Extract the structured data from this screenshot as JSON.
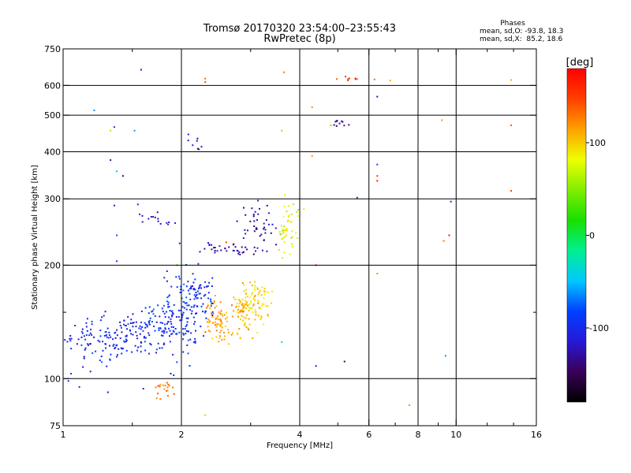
{
  "chart_data": {
    "type": "scatter",
    "title": "Tromsø 20170320 23:54:00–23:55:43",
    "subtitle": "RwPretec (8p)",
    "xlabel": "Frequency [MHz]",
    "ylabel": "Stationary phase Virtual Height [km]",
    "xscale": "log",
    "yscale": "log",
    "xlim": [
      1,
      16
    ],
    "ylim": [
      75,
      750
    ],
    "x_ticks": [
      1,
      2,
      4,
      6,
      8,
      10,
      16
    ],
    "x_tick_labels": [
      "1",
      "2",
      "4",
      "6",
      "8",
      "10",
      "16"
    ],
    "x_minor_ticks": [
      1.5,
      3,
      5,
      7,
      9,
      12,
      14
    ],
    "y_ticks": [
      75,
      100,
      200,
      300,
      400,
      500,
      600,
      750
    ],
    "y_tick_labels": [
      "75",
      "100",
      "200",
      "300",
      "400",
      "500",
      "600",
      "750"
    ],
    "y_minor_ticks": [
      150
    ],
    "x_grid": [
      2,
      4,
      6,
      8,
      10
    ],
    "y_grid": [
      100,
      200,
      300,
      400,
      500,
      600
    ],
    "grid": true,
    "phase_info": {
      "title": "Phases",
      "line1": "mean, sd,O: -93.8, 18.3",
      "line2": "mean, sd,X:  85.2, 18.6"
    },
    "colorbar": {
      "label": "[deg]",
      "min": -180,
      "max": 180,
      "ticks": [
        100,
        0,
        -100
      ],
      "tick_labels": [
        "100",
        "0",
        "-100"
      ],
      "colormap": "rainbow",
      "colors": [
        "#000000",
        "#3a0058",
        "#2818d8",
        "#0040ff",
        "#00c8ff",
        "#00f090",
        "#18e000",
        "#80ee00",
        "#f0ff00",
        "#ffa000",
        "#ff4000",
        "#ff0000"
      ]
    },
    "point_groups": [
      {
        "cx": 1.2,
        "cy": 125,
        "sx": 0.15,
        "sy": 10,
        "n": 80,
        "phase": -100
      },
      {
        "cx": 1.5,
        "cy": 130,
        "sx": 0.15,
        "sy": 8,
        "n": 80,
        "phase": -100
      },
      {
        "cx": 1.75,
        "cy": 137,
        "sx": 0.12,
        "sy": 9,
        "n": 60,
        "phase": -97
      },
      {
        "cx": 2.0,
        "cy": 150,
        "sx": 0.12,
        "sy": 20,
        "n": 120,
        "phase": -92
      },
      {
        "cx": 2.25,
        "cy": 168,
        "sx": 0.1,
        "sy": 15,
        "n": 50,
        "phase": -95
      },
      {
        "cx": 2.5,
        "cy": 140,
        "sx": 0.12,
        "sy": 10,
        "n": 70,
        "phase": 115
      },
      {
        "cx": 2.85,
        "cy": 150,
        "sx": 0.12,
        "sy": 10,
        "n": 70,
        "phase": 108
      },
      {
        "cx": 3.15,
        "cy": 160,
        "sx": 0.12,
        "sy": 10,
        "n": 70,
        "phase": 97
      },
      {
        "cx": 2.6,
        "cy": 220,
        "sx": 0.25,
        "sy": 5,
        "n": 35,
        "phase": -130
      },
      {
        "cx": 3.15,
        "cy": 250,
        "sx": 0.15,
        "sy": 25,
        "n": 45,
        "phase": -128
      },
      {
        "cx": 3.75,
        "cy": 250,
        "sx": 0.12,
        "sy": 20,
        "n": 45,
        "phase": 82
      },
      {
        "cx": 1.75,
        "cy": 265,
        "sx": 0.12,
        "sy": 8,
        "n": 15,
        "phase": -118
      },
      {
        "cx": 1.82,
        "cy": 93,
        "sx": 0.06,
        "sy": 3,
        "n": 20,
        "phase": 128
      },
      {
        "cx": 2.2,
        "cy": 425,
        "sx": 0.06,
        "sy": 10,
        "n": 8,
        "phase": -125
      },
      {
        "cx": 5.05,
        "cy": 475,
        "sx": 0.15,
        "sy": 10,
        "n": 10,
        "phase": -140
      },
      {
        "cx": 5.35,
        "cy": 625,
        "sx": 0.15,
        "sy": 4,
        "n": 8,
        "phase": 150
      }
    ],
    "extra_points": [
      {
        "x": 1.58,
        "y": 660,
        "phase": -110
      },
      {
        "x": 3.65,
        "y": 650,
        "phase": 130
      },
      {
        "x": 2.3,
        "y": 625,
        "phase": 135
      },
      {
        "x": 2.3,
        "y": 612,
        "phase": 150
      },
      {
        "x": 6.2,
        "y": 622,
        "phase": 130
      },
      {
        "x": 6.8,
        "y": 618,
        "phase": 110
      },
      {
        "x": 6.3,
        "y": 560,
        "phase": -130
      },
      {
        "x": 1.2,
        "y": 515,
        "phase": -60
      },
      {
        "x": 1.35,
        "y": 465,
        "phase": -100
      },
      {
        "x": 1.32,
        "y": 455,
        "phase": 60
      },
      {
        "x": 1.52,
        "y": 455,
        "phase": -60
      },
      {
        "x": 9.2,
        "y": 485,
        "phase": 120
      },
      {
        "x": 4.3,
        "y": 525,
        "phase": 120
      },
      {
        "x": 3.6,
        "y": 455,
        "phase": 50
      },
      {
        "x": 13.8,
        "y": 470,
        "phase": 140
      },
      {
        "x": 13.8,
        "y": 620,
        "phase": 110
      },
      {
        "x": 4.8,
        "y": 470,
        "phase": 50
      },
      {
        "x": 1.32,
        "y": 380,
        "phase": -130
      },
      {
        "x": 1.37,
        "y": 355,
        "phase": -50
      },
      {
        "x": 1.42,
        "y": 345,
        "phase": -140
      },
      {
        "x": 6.3,
        "y": 370,
        "phase": -80
      },
      {
        "x": 6.3,
        "y": 345,
        "phase": 150
      },
      {
        "x": 6.3,
        "y": 335,
        "phase": 170
      },
      {
        "x": 4.3,
        "y": 390,
        "phase": 120
      },
      {
        "x": 5.6,
        "y": 302,
        "phase": -100
      },
      {
        "x": 9.7,
        "y": 295,
        "phase": -110
      },
      {
        "x": 13.8,
        "y": 315,
        "phase": 150
      },
      {
        "x": 9.3,
        "y": 232,
        "phase": 130
      },
      {
        "x": 9.6,
        "y": 240,
        "phase": 170
      },
      {
        "x": 1.35,
        "y": 288,
        "phase": -120
      },
      {
        "x": 1.37,
        "y": 240,
        "phase": -80
      },
      {
        "x": 1.37,
        "y": 205,
        "phase": -90
      },
      {
        "x": 1.55,
        "y": 290,
        "phase": -110
      },
      {
        "x": 1.1,
        "y": 95,
        "phase": -100
      },
      {
        "x": 1.3,
        "y": 92,
        "phase": -120
      },
      {
        "x": 1.6,
        "y": 94,
        "phase": -120
      },
      {
        "x": 2.3,
        "y": 80,
        "phase": 60
      },
      {
        "x": 4.4,
        "y": 108,
        "phase": -130
      },
      {
        "x": 5.2,
        "y": 111,
        "phase": -140
      },
      {
        "x": 7.6,
        "y": 85,
        "phase": 120
      },
      {
        "x": 9.4,
        "y": 115,
        "phase": -60
      },
      {
        "x": 4.4,
        "y": 200,
        "phase": 160
      },
      {
        "x": 6.3,
        "y": 190,
        "phase": 120
      },
      {
        "x": 3.6,
        "y": 125,
        "phase": -40
      },
      {
        "x": 1.95,
        "y": 200,
        "phase": 20
      },
      {
        "x": 2.6,
        "y": 230,
        "phase": 150
      },
      {
        "x": 4.1,
        "y": 282,
        "phase": 90
      }
    ]
  }
}
